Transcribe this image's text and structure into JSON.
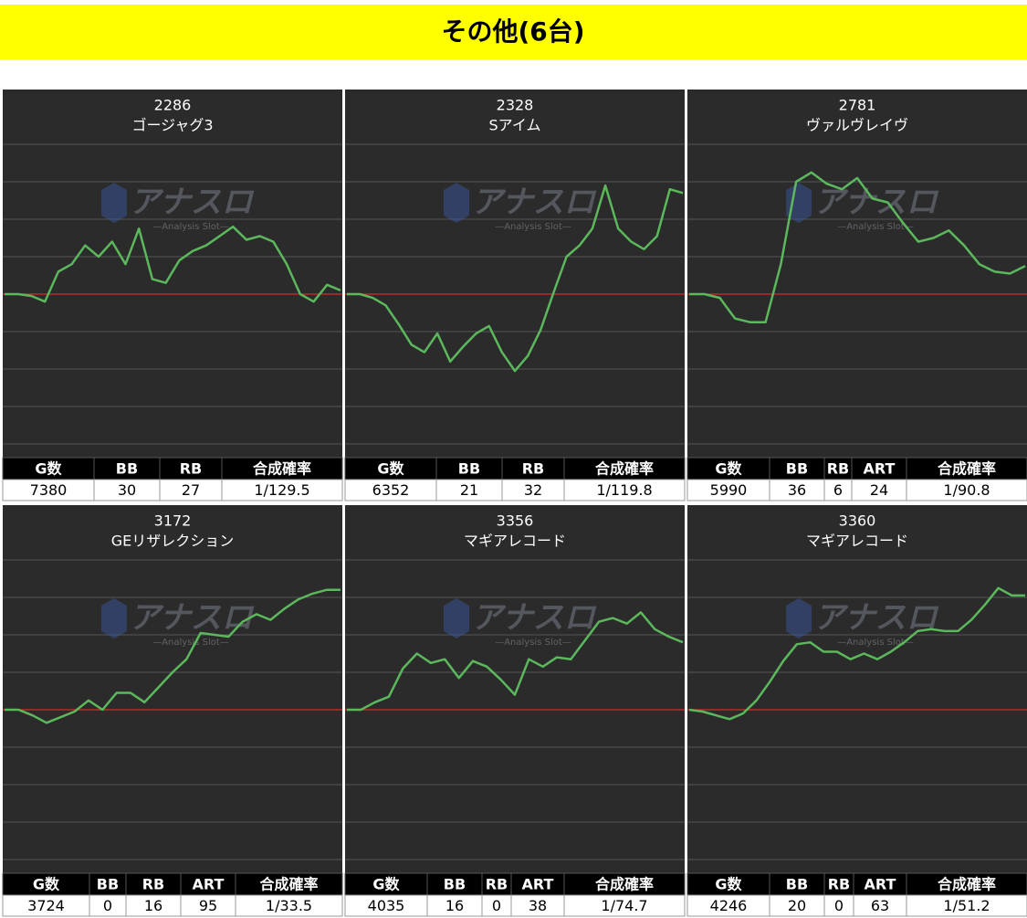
{
  "title": "その他(6台)",
  "watermark": {
    "title": "アナスロ",
    "subtitle": "—Analysis Slot—"
  },
  "chart_data": [
    {
      "type": "line",
      "machine_number": "2286",
      "title": "ゴージャグ3",
      "color": "#5cb85c",
      "ylim": [
        -4000,
        4000
      ],
      "grid": true,
      "values": [
        0,
        0,
        -50,
        -200,
        600,
        800,
        1300,
        1000,
        1400,
        800,
        1750,
        400,
        300,
        900,
        1150,
        1300,
        1550,
        1800,
        1450,
        1550,
        1400,
        800,
        0,
        -200,
        250,
        100
      ],
      "table": {
        "headers": [
          "G数",
          "BB",
          "RB",
          "合成確率"
        ],
        "values": [
          7380,
          30,
          27,
          "1/129.5"
        ]
      }
    },
    {
      "type": "line",
      "machine_number": "2328",
      "title": "Sアイム",
      "color": "#5cb85c",
      "ylim": [
        -4000,
        4000
      ],
      "grid": true,
      "values": [
        0,
        0,
        -100,
        -300,
        -800,
        -1350,
        -1550,
        -1050,
        -1800,
        -1400,
        -1050,
        -850,
        -1550,
        -2050,
        -1650,
        -950,
        50,
        1000,
        1300,
        1750,
        2900,
        1750,
        1400,
        1200,
        1550,
        2800,
        2700
      ],
      "table": {
        "headers": [
          "G数",
          "BB",
          "RB",
          "合成確率"
        ],
        "values": [
          6352,
          21,
          32,
          "1/119.8"
        ]
      }
    },
    {
      "type": "line",
      "machine_number": "2781",
      "title": "ヴァルヴレイヴ",
      "color": "#5cb85c",
      "ylim": [
        -4000,
        4000
      ],
      "grid": true,
      "values": [
        0,
        0,
        -100,
        -650,
        -750,
        -750,
        800,
        3000,
        3250,
        2950,
        2800,
        3100,
        2550,
        2450,
        1900,
        1400,
        1500,
        1700,
        1300,
        800,
        600,
        550,
        750
      ],
      "table": {
        "headers": [
          "G数",
          "BB",
          "RB",
          "ART",
          "合成確率"
        ],
        "values": [
          5990,
          36,
          6,
          24,
          "1/90.8"
        ]
      }
    },
    {
      "type": "line",
      "machine_number": "3172",
      "title": "GEリザレクション",
      "color": "#5cb85c",
      "ylim": [
        -4000,
        4000
      ],
      "grid": true,
      "values": [
        0,
        0,
        -150,
        -350,
        -200,
        -50,
        250,
        0,
        450,
        450,
        200,
        600,
        1000,
        1350,
        2050,
        2000,
        1950,
        2350,
        2550,
        2400,
        2700,
        2950,
        3100,
        3200,
        3200
      ],
      "table": {
        "headers": [
          "G数",
          "BB",
          "RB",
          "ART",
          "合成確率"
        ],
        "values": [
          3724,
          0,
          16,
          95,
          "1/33.5"
        ]
      }
    },
    {
      "type": "line",
      "machine_number": "3356",
      "title": "マギアレコード",
      "color": "#5cb85c",
      "ylim": [
        -4000,
        4000
      ],
      "grid": true,
      "values": [
        0,
        0,
        200,
        350,
        1100,
        1500,
        1250,
        1350,
        850,
        1300,
        1150,
        800,
        400,
        1350,
        1150,
        1400,
        1350,
        1850,
        2350,
        2450,
        2300,
        2600,
        2150,
        1950,
        1800
      ],
      "table": {
        "headers": [
          "G数",
          "BB",
          "RB",
          "ART",
          "合成確率"
        ],
        "values": [
          4035,
          16,
          0,
          38,
          "1/74.7"
        ]
      }
    },
    {
      "type": "line",
      "machine_number": "3360",
      "title": "マギアレコード",
      "color": "#5cb85c",
      "ylim": [
        -4000,
        4000
      ],
      "grid": true,
      "values": [
        0,
        -50,
        -150,
        -250,
        -100,
        250,
        750,
        1300,
        1750,
        1800,
        1550,
        1550,
        1350,
        1500,
        1350,
        1550,
        1800,
        2100,
        2150,
        2100,
        2100,
        2400,
        2800,
        3250,
        3050,
        3050
      ],
      "table": {
        "headers": [
          "G数",
          "BB",
          "RB",
          "ART",
          "合成確率"
        ],
        "values": [
          4246,
          20,
          0,
          63,
          "1/51.2"
        ]
      }
    }
  ]
}
